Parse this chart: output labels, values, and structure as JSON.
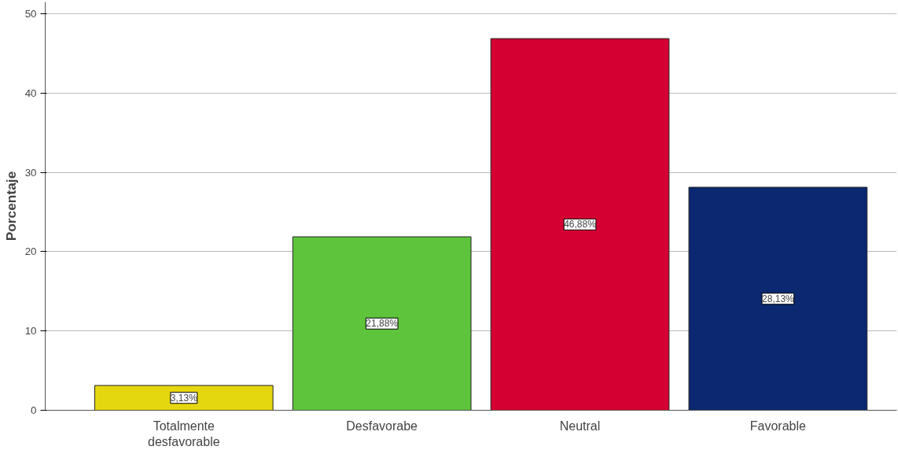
{
  "chart_data": {
    "type": "bar",
    "ylabel": "Porcentaje",
    "categories": [
      "Totalmente desfavorable",
      "Desfavorabe",
      "Neutral",
      "Favorable"
    ],
    "values": [
      3.13,
      21.88,
      46.88,
      28.13
    ],
    "colors": [
      "#e5d70f",
      "#5ec43b",
      "#d50032",
      "#0b2870"
    ],
    "value_labels": [
      "3,13%",
      "21,88%",
      "46,88%",
      "28,13%"
    ],
    "ylim": [
      0,
      51.5
    ],
    "yticks": [
      0,
      10,
      20,
      30,
      40,
      50
    ],
    "grid": "y"
  }
}
